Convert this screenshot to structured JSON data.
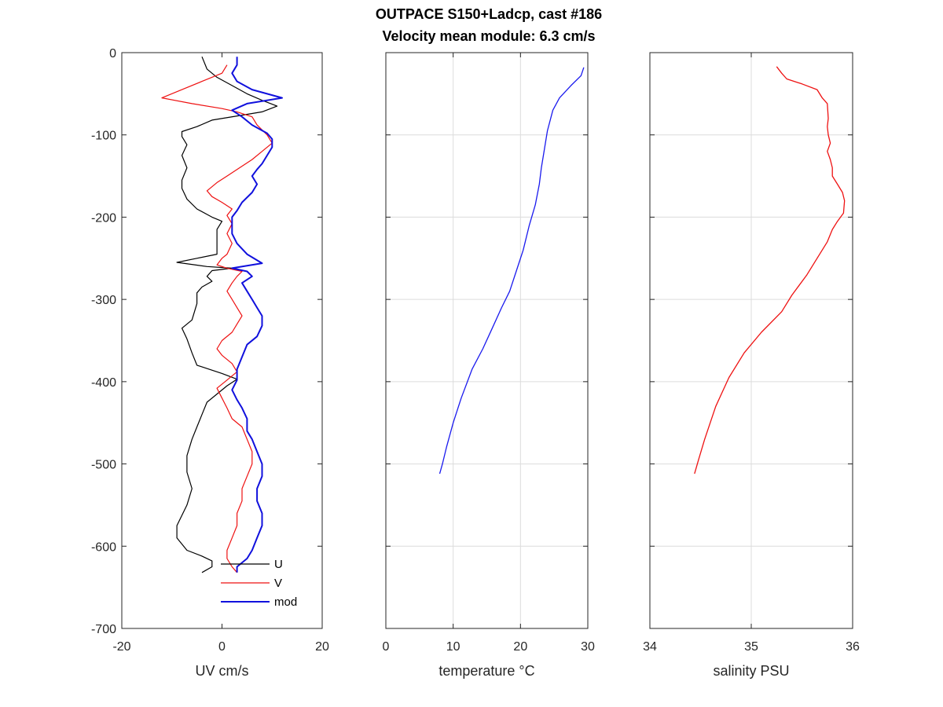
{
  "figure": {
    "title_line1": "OUTPACE S150+Ladcp, cast #186",
    "title_line2": "Velocity mean module:  6.3 cm/s"
  },
  "chart_data": [
    {
      "type": "line",
      "xlabel": "UV cm/s",
      "ylabel": "",
      "xlim": [
        -20,
        20
      ],
      "ylim": [
        -700,
        0
      ],
      "xticks": [
        "-20",
        "0",
        "20"
      ],
      "yticks": [
        "0",
        "-100",
        "-200",
        "-300",
        "-400",
        "-500",
        "-600",
        "-700"
      ],
      "grid": false,
      "legend": {
        "placement": "bottom-right",
        "entries": [
          "U",
          "V",
          "mod"
        ]
      },
      "series": [
        {
          "name": "U",
          "color": "#000000",
          "points": [
            [
              -4,
              -5
            ],
            [
              -3,
              -20
            ],
            [
              -1,
              -30
            ],
            [
              2,
              -40
            ],
            [
              5,
              -50
            ],
            [
              8,
              -58
            ],
            [
              11,
              -65
            ],
            [
              8,
              -72
            ],
            [
              4,
              -76
            ],
            [
              -2,
              -82
            ],
            [
              -5,
              -90
            ],
            [
              -8,
              -96
            ],
            [
              -8,
              -102
            ],
            [
              -7,
              -112
            ],
            [
              -8,
              -125
            ],
            [
              -7,
              -140
            ],
            [
              -8,
              -155
            ],
            [
              -8,
              -165
            ],
            [
              -7,
              -178
            ],
            [
              -5,
              -190
            ],
            [
              -2,
              -200
            ],
            [
              0,
              -205
            ],
            [
              -1,
              -215
            ],
            [
              -1,
              -230
            ],
            [
              -1,
              -245
            ],
            [
              -5,
              -250
            ],
            [
              -9,
              -255
            ],
            [
              -3,
              -260
            ],
            [
              2,
              -262
            ],
            [
              -2,
              -265
            ],
            [
              -3,
              -272
            ],
            [
              -2,
              -278
            ],
            [
              -4,
              -285
            ],
            [
              -5,
              -292
            ],
            [
              -5,
              -305
            ],
            [
              -6,
              -325
            ],
            [
              -8,
              -335
            ],
            [
              -7,
              -348
            ],
            [
              -6,
              -365
            ],
            [
              -5,
              -380
            ],
            [
              0,
              -390
            ],
            [
              3,
              -397
            ],
            [
              1,
              -405
            ],
            [
              -1,
              -415
            ],
            [
              -3,
              -425
            ],
            [
              -4,
              -440
            ],
            [
              -5,
              -455
            ],
            [
              -6,
              -470
            ],
            [
              -7,
              -490
            ],
            [
              -7,
              -510
            ],
            [
              -6,
              -530
            ],
            [
              -7,
              -550
            ],
            [
              -9,
              -575
            ],
            [
              -9,
              -590
            ],
            [
              -7,
              -605
            ],
            [
              -4,
              -612
            ],
            [
              -2,
              -618
            ],
            [
              -2,
              -625
            ],
            [
              -4,
              -632
            ]
          ]
        },
        {
          "name": "V",
          "color": "#ee1111",
          "points": [
            [
              1,
              -15
            ],
            [
              0,
              -25
            ],
            [
              -4,
              -35
            ],
            [
              -8,
              -45
            ],
            [
              -12,
              -55
            ],
            [
              -6,
              -62
            ],
            [
              0,
              -68
            ],
            [
              3,
              -72
            ],
            [
              6,
              -78
            ],
            [
              7,
              -88
            ],
            [
              9,
              -100
            ],
            [
              10,
              -110
            ],
            [
              8,
              -120
            ],
            [
              6,
              -130
            ],
            [
              3,
              -142
            ],
            [
              1,
              -150
            ],
            [
              -1,
              -158
            ],
            [
              -3,
              -168
            ],
            [
              -2,
              -175
            ],
            [
              0,
              -182
            ],
            [
              2,
              -190
            ],
            [
              1,
              -198
            ],
            [
              2,
              -208
            ],
            [
              1,
              -220
            ],
            [
              2,
              -232
            ],
            [
              1,
              -245
            ],
            [
              0,
              -250
            ],
            [
              -1,
              -258
            ],
            [
              1,
              -262
            ],
            [
              4,
              -266
            ],
            [
              3,
              -272
            ],
            [
              2,
              -280
            ],
            [
              1,
              -290
            ],
            [
              2,
              -300
            ],
            [
              3,
              -310
            ],
            [
              4,
              -320
            ],
            [
              3,
              -330
            ],
            [
              2,
              -340
            ],
            [
              0,
              -350
            ],
            [
              -1,
              -360
            ],
            [
              0,
              -368
            ],
            [
              2,
              -378
            ],
            [
              3,
              -388
            ],
            [
              1,
              -398
            ],
            [
              -1,
              -408
            ],
            [
              0,
              -420
            ],
            [
              1,
              -432
            ],
            [
              2,
              -445
            ],
            [
              4,
              -455
            ],
            [
              5,
              -470
            ],
            [
              6,
              -485
            ],
            [
              6,
              -500
            ],
            [
              5,
              -515
            ],
            [
              4,
              -530
            ],
            [
              4,
              -545
            ],
            [
              3,
              -560
            ],
            [
              3,
              -575
            ],
            [
              2,
              -590
            ],
            [
              1,
              -605
            ],
            [
              1,
              -615
            ],
            [
              2,
              -625
            ],
            [
              3,
              -632
            ]
          ]
        },
        {
          "name": "mod",
          "color": "#1010dd",
          "points": [
            [
              3,
              -5
            ],
            [
              3,
              -15
            ],
            [
              2,
              -25
            ],
            [
              3,
              -35
            ],
            [
              6,
              -45
            ],
            [
              12,
              -55
            ],
            [
              5,
              -62
            ],
            [
              2,
              -70
            ],
            [
              4,
              -78
            ],
            [
              6,
              -88
            ],
            [
              9,
              -98
            ],
            [
              10,
              -105
            ],
            [
              10,
              -115
            ],
            [
              9,
              -125
            ],
            [
              8,
              -135
            ],
            [
              7,
              -142
            ],
            [
              6,
              -150
            ],
            [
              7,
              -160
            ],
            [
              6,
              -170
            ],
            [
              4,
              -182
            ],
            [
              3,
              -192
            ],
            [
              2,
              -200
            ],
            [
              2,
              -210
            ],
            [
              2,
              -220
            ],
            [
              3,
              -232
            ],
            [
              5,
              -245
            ],
            [
              8,
              -256
            ],
            [
              2,
              -262
            ],
            [
              5,
              -266
            ],
            [
              6,
              -272
            ],
            [
              4,
              -280
            ],
            [
              5,
              -290
            ],
            [
              6,
              -300
            ],
            [
              7,
              -310
            ],
            [
              8,
              -320
            ],
            [
              8,
              -332
            ],
            [
              7,
              -345
            ],
            [
              5,
              -355
            ],
            [
              4,
              -370
            ],
            [
              3,
              -385
            ],
            [
              3,
              -398
            ],
            [
              2,
              -410
            ],
            [
              3,
              -422
            ],
            [
              4,
              -432
            ],
            [
              5,
              -445
            ],
            [
              5,
              -460
            ],
            [
              6,
              -470
            ],
            [
              7,
              -485
            ],
            [
              8,
              -500
            ],
            [
              8,
              -515
            ],
            [
              7,
              -530
            ],
            [
              7,
              -545
            ],
            [
              8,
              -560
            ],
            [
              8,
              -575
            ],
            [
              7,
              -590
            ],
            [
              6,
              -605
            ],
            [
              5,
              -615
            ],
            [
              3,
              -625
            ],
            [
              3,
              -632
            ]
          ]
        }
      ]
    },
    {
      "type": "line",
      "xlabel": "temperature °C",
      "ylabel": "",
      "xlim": [
        0,
        30
      ],
      "ylim": [
        -700,
        0
      ],
      "xticks": [
        "0",
        "10",
        "20",
        "30"
      ],
      "grid": true,
      "series": [
        {
          "color": "#1a1aee",
          "points": [
            [
              29.4,
              -18
            ],
            [
              29,
              -28
            ],
            [
              27.5,
              -40
            ],
            [
              25.8,
              -55
            ],
            [
              24.8,
              -70
            ],
            [
              24.0,
              -95
            ],
            [
              23.6,
              -115
            ],
            [
              23.1,
              -140
            ],
            [
              22.8,
              -160
            ],
            [
              22.2,
              -185
            ],
            [
              21.3,
              -210
            ],
            [
              20.4,
              -240
            ],
            [
              19.4,
              -265
            ],
            [
              18.4,
              -290
            ],
            [
              17.2,
              -310
            ],
            [
              15.8,
              -335
            ],
            [
              14.4,
              -360
            ],
            [
              12.8,
              -385
            ],
            [
              11.2,
              -420
            ],
            [
              10.0,
              -450
            ],
            [
              9.0,
              -480
            ],
            [
              8.4,
              -500
            ],
            [
              8.0,
              -512
            ]
          ]
        }
      ]
    },
    {
      "type": "line",
      "xlabel": "salinity PSU",
      "ylabel": "",
      "xlim": [
        34,
        36
      ],
      "ylim": [
        -700,
        0
      ],
      "xticks": [
        "34",
        "35",
        "36"
      ],
      "grid": true,
      "series": [
        {
          "color": "#ee1111",
          "points": [
            [
              35.25,
              -17
            ],
            [
              35.3,
              -25
            ],
            [
              35.35,
              -32
            ],
            [
              35.5,
              -38
            ],
            [
              35.65,
              -45
            ],
            [
              35.7,
              -55
            ],
            [
              35.75,
              -62
            ],
            [
              35.76,
              -80
            ],
            [
              35.75,
              -90
            ],
            [
              35.76,
              -100
            ],
            [
              35.78,
              -110
            ],
            [
              35.75,
              -120
            ],
            [
              35.78,
              -130
            ],
            [
              35.8,
              -140
            ],
            [
              35.8,
              -150
            ],
            [
              35.85,
              -160
            ],
            [
              35.9,
              -170
            ],
            [
              35.92,
              -180
            ],
            [
              35.91,
              -195
            ],
            [
              35.85,
              -205
            ],
            [
              35.8,
              -215
            ],
            [
              35.75,
              -230
            ],
            [
              35.65,
              -250
            ],
            [
              35.55,
              -270
            ],
            [
              35.4,
              -295
            ],
            [
              35.3,
              -315
            ],
            [
              35.1,
              -340
            ],
            [
              34.93,
              -365
            ],
            [
              34.78,
              -395
            ],
            [
              34.65,
              -430
            ],
            [
              34.54,
              -470
            ],
            [
              34.48,
              -495
            ],
            [
              34.44,
              -512
            ]
          ]
        }
      ]
    }
  ]
}
